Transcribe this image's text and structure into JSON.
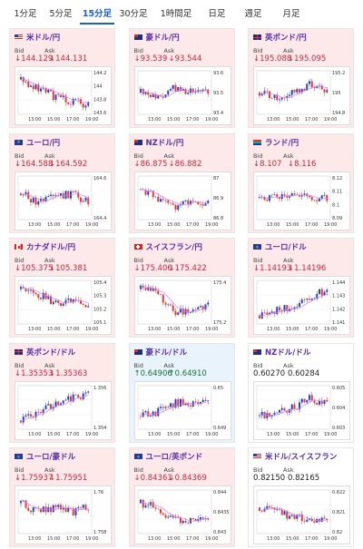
{
  "tabs": [
    {
      "label": "1分足"
    },
    {
      "label": "5分足"
    },
    {
      "label": "15分足",
      "active": true
    },
    {
      "label": "30分足"
    },
    {
      "label": "1時間足"
    },
    {
      "label": "日足"
    },
    {
      "label": "週足"
    },
    {
      "label": "月足"
    }
  ],
  "labels": {
    "bid": "Bid",
    "ask": "Ask"
  },
  "arrows": {
    "down": "↓",
    "up": "↑"
  },
  "x_ticks": [
    "13:00",
    "15:00",
    "17:00",
    "19:00"
  ],
  "colors": {
    "up_candle": "#2a3fbf",
    "down_candle": "#e23a3a",
    "ma_line": "#d07cff",
    "name": "#5a2ea6",
    "down_text": "#c7283d",
    "up_text": "#1a6e3a"
  },
  "pairs": [
    {
      "name": "米ドル/円",
      "flag": "us",
      "bid": "144.129",
      "ask": "144.131",
      "dir": "down",
      "y_ticks": [
        "144.2",
        "144",
        "143.8",
        "143.6"
      ]
    },
    {
      "name": "豪ドル/円",
      "flag": "au",
      "bid": "93.539",
      "ask": "93.544",
      "dir": "down",
      "y_ticks": [
        "93.6",
        "93.5",
        "93.4"
      ]
    },
    {
      "name": "英ポンド/円",
      "flag": "uk",
      "bid": "195.088",
      "ask": "195.095",
      "dir": "down",
      "y_ticks": [
        "195.2",
        "195",
        "194.8"
      ]
    },
    {
      "name": "ユーロ/円",
      "flag": "eu",
      "bid": "164.588",
      "ask": "164.592",
      "dir": "down",
      "y_ticks": [
        "164.6",
        "164.4"
      ]
    },
    {
      "name": "NZドル/円",
      "flag": "nz",
      "bid": "86.875",
      "ask": "86.882",
      "dir": "down",
      "y_ticks": [
        "87",
        "86.9",
        "86.8"
      ]
    },
    {
      "name": "ランド/円",
      "flag": "za",
      "bid": "8.107",
      "ask": "8.116",
      "dir": "down",
      "y_ticks": [
        "8.12",
        "8.11",
        "8.1",
        "8.09"
      ]
    },
    {
      "name": "カナダドル/円",
      "flag": "ca",
      "bid": "105.375",
      "ask": "105.381",
      "dir": "down",
      "y_ticks": [
        "105.4",
        "105.3",
        "105.2",
        "105.1"
      ]
    },
    {
      "name": "スイスフラン/円",
      "flag": "ch",
      "bid": "175.406",
      "ask": "175.422",
      "dir": "down",
      "y_ticks": [
        "175.4",
        "175.2"
      ]
    },
    {
      "name": "ユーロ/ドル",
      "flag": "eu",
      "bid": "1.14193",
      "ask": "1.14196",
      "dir": "down",
      "y_ticks": [
        "1.144",
        "1.143",
        "1.142",
        "1.141"
      ]
    },
    {
      "name": "英ポンド/ドル",
      "flag": "uk",
      "bid": "1.35353",
      "ask": "1.35363",
      "dir": "down",
      "y_ticks": [
        "1.356",
        "1.354"
      ]
    },
    {
      "name": "豪ドル/ドル",
      "flag": "au",
      "bid": "0.64906",
      "ask": "0.64910",
      "dir": "up",
      "y_ticks": [
        "0.65",
        "0.649"
      ]
    },
    {
      "name": "NZドル/ドル",
      "flag": "nz",
      "bid": "0.60270",
      "ask": "0.60284",
      "dir": "flat",
      "y_ticks": [
        "0.605",
        "0.604",
        "0.603"
      ]
    },
    {
      "name": "ユーロ/豪ドル",
      "flag": "eu",
      "bid": "1.75937",
      "ask": "1.75951",
      "dir": "down",
      "y_ticks": [
        "1.76",
        "1.758"
      ]
    },
    {
      "name": "ユーロ/英ポンド",
      "flag": "eu",
      "bid": "0.84361",
      "ask": "0.84369",
      "dir": "down",
      "y_ticks": [
        "0.844",
        "0.8435",
        "0.843"
      ]
    },
    {
      "name": "米ドル/スイスフラン",
      "flag": "us",
      "bid": "0.82150",
      "ask": "0.82165",
      "dir": "flat",
      "y_ticks": [
        "0.822",
        "0.821",
        "0.82"
      ]
    }
  ]
}
